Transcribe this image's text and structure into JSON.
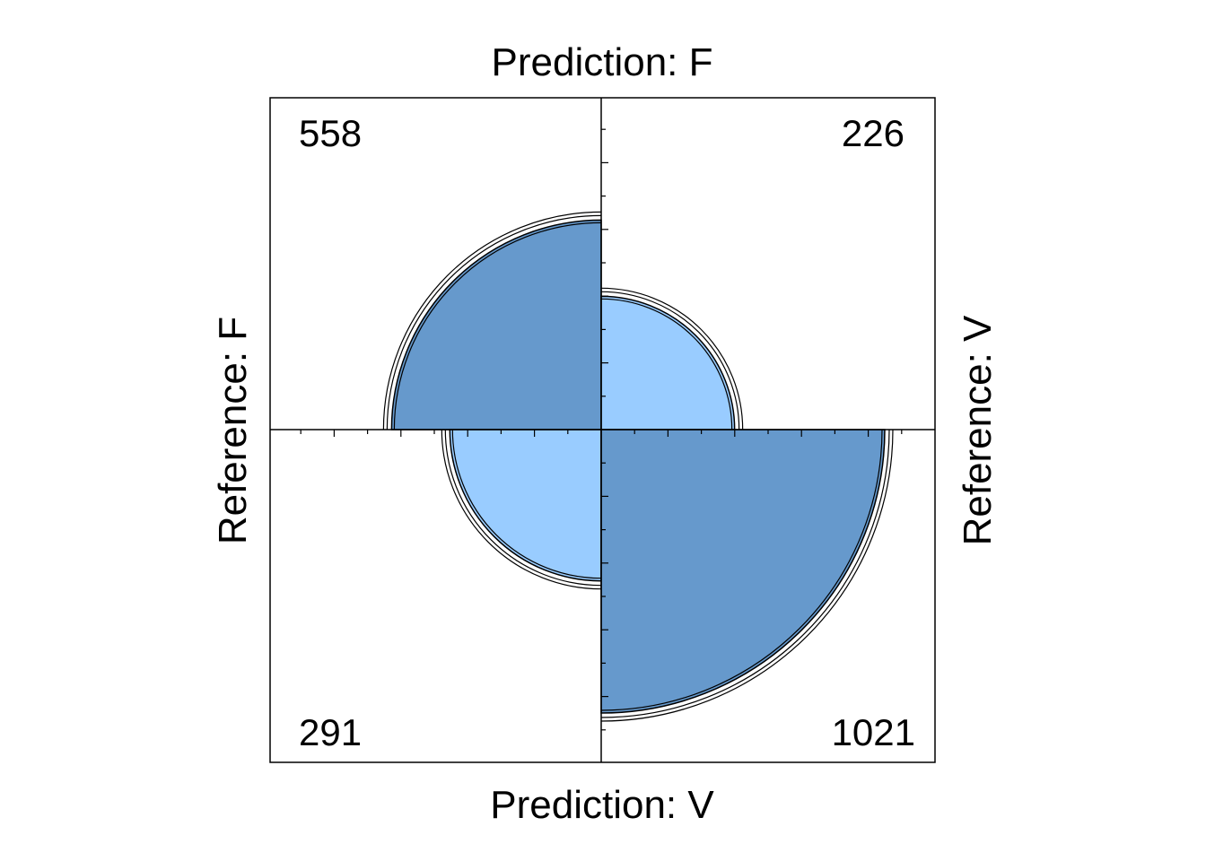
{
  "chart_data": {
    "type": "fourfold",
    "title_top": "Prediction: F",
    "title_bottom": "Prediction: V",
    "label_left": "Reference: F",
    "label_right": "Reference: V",
    "cells": [
      {
        "position": "top-left",
        "count": 558,
        "label": "558",
        "shade": "dark"
      },
      {
        "position": "top-right",
        "count": 226,
        "label": "226",
        "shade": "light"
      },
      {
        "position": "bottom-left",
        "count": 291,
        "label": "291",
        "shade": "light"
      },
      {
        "position": "bottom-right",
        "count": 1021,
        "label": "1021",
        "shade": "dark"
      }
    ],
    "colors": {
      "dark": "#6699cc",
      "light": "#99ccff",
      "outline": "#000000"
    },
    "confidence_rings": true
  }
}
